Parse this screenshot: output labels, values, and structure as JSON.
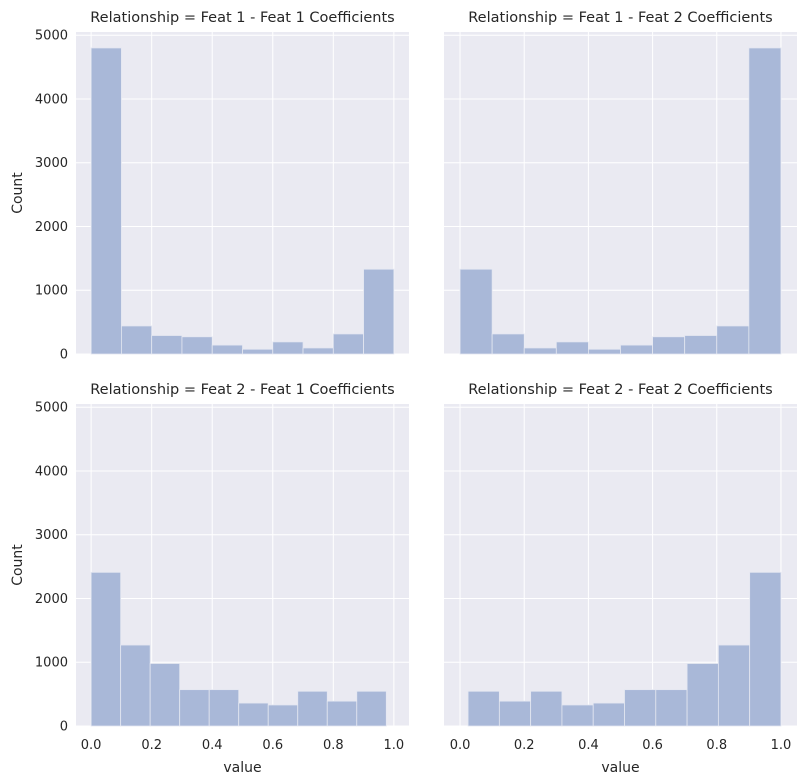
{
  "chart_data": [
    {
      "type": "bar",
      "title": "Relationship = Feat 1 - Feat 1 Coefficients",
      "xlabel": "",
      "ylabel": "Count",
      "bin_edges": [
        0.0,
        0.1,
        0.2,
        0.3,
        0.4,
        0.5,
        0.6,
        0.7,
        0.8,
        0.9,
        1.0
      ],
      "values": [
        4800,
        440,
        290,
        270,
        140,
        75,
        190,
        95,
        315,
        1330
      ],
      "xlim": [
        -0.05,
        1.05
      ],
      "ylim": [
        0,
        5050
      ],
      "xticks": [
        "0.0",
        "0.2",
        "0.4",
        "0.6",
        "0.8",
        "1.0"
      ],
      "yticks": [
        "0",
        "1000",
        "2000",
        "3000",
        "4000",
        "5000"
      ],
      "grid": true
    },
    {
      "type": "bar",
      "title": "Relationship = Feat 1 - Feat 2 Coefficients",
      "xlabel": "",
      "ylabel": "",
      "bin_edges": [
        0.0,
        0.1,
        0.2,
        0.3,
        0.4,
        0.5,
        0.6,
        0.7,
        0.8,
        0.9,
        1.0
      ],
      "values": [
        1330,
        315,
        95,
        190,
        75,
        140,
        270,
        290,
        440,
        4800
      ],
      "xlim": [
        -0.05,
        1.05
      ],
      "ylim": [
        0,
        5050
      ],
      "xticks": [
        "0.0",
        "0.2",
        "0.4",
        "0.6",
        "0.8",
        "1.0"
      ],
      "yticks": [
        "0",
        "1000",
        "2000",
        "3000",
        "4000",
        "5000"
      ],
      "grid": true
    },
    {
      "type": "bar",
      "title": "Relationship = Feat 2 - Feat 1 Coefficients",
      "xlabel": "value",
      "ylabel": "Count",
      "bin_edges": [
        0.0,
        0.0975,
        0.195,
        0.2925,
        0.39,
        0.4875,
        0.585,
        0.6825,
        0.78,
        0.8775,
        0.975
      ],
      "values": [
        2410,
        1270,
        980,
        570,
        570,
        360,
        330,
        545,
        390,
        545
      ],
      "xlim": [
        -0.05,
        1.05
      ],
      "ylim": [
        0,
        5050
      ],
      "xticks": [
        "0.0",
        "0.2",
        "0.4",
        "0.6",
        "0.8",
        "1.0"
      ],
      "yticks": [
        "0",
        "1000",
        "2000",
        "3000",
        "4000",
        "5000"
      ],
      "grid": true
    },
    {
      "type": "bar",
      "title": "Relationship = Feat 2 - Feat 2 Coefficients",
      "xlabel": "value",
      "ylabel": "",
      "bin_edges": [
        0.025,
        0.1225,
        0.22,
        0.3175,
        0.415,
        0.5125,
        0.61,
        0.7075,
        0.805,
        0.9025,
        1.0
      ],
      "values": [
        545,
        390,
        545,
        330,
        360,
        570,
        570,
        980,
        1270,
        2410
      ],
      "xlim": [
        -0.05,
        1.05
      ],
      "ylim": [
        0,
        5050
      ],
      "xticks": [
        "0.0",
        "0.2",
        "0.4",
        "0.6",
        "0.8",
        "1.0"
      ],
      "yticks": [
        "0",
        "1000",
        "2000",
        "3000",
        "4000",
        "5000"
      ],
      "grid": true
    }
  ],
  "colors": {
    "bar_fill": "#a9b8d8",
    "bar_edge": "#e4e7f1",
    "axes_bg": "#eaeaf2",
    "grid": "#ffffff",
    "text": "#262626"
  }
}
